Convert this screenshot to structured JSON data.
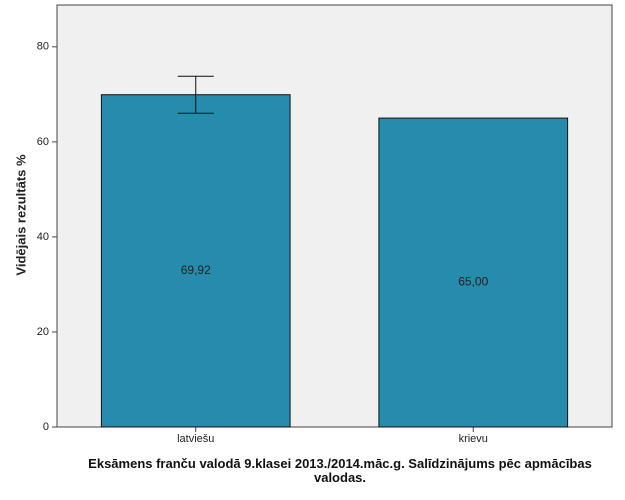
{
  "chart_data": {
    "type": "bar",
    "x_label": "Eksāmens franču valodā 9.klasei 2013./2014.māc.g. Salīdzinājums pēc apmācības valodas.",
    "y_label": "Vidējais rezultāts %",
    "categories": [
      "latviešu",
      "krievu"
    ],
    "values": [
      69.92,
      65
    ],
    "value_labels": [
      "69,92",
      "65,00"
    ],
    "errors": [
      3.9,
      null
    ],
    "color": "#268bad",
    "ylim": [
      0,
      88.8
    ],
    "yticks": [
      0,
      20,
      40,
      60,
      80
    ]
  }
}
